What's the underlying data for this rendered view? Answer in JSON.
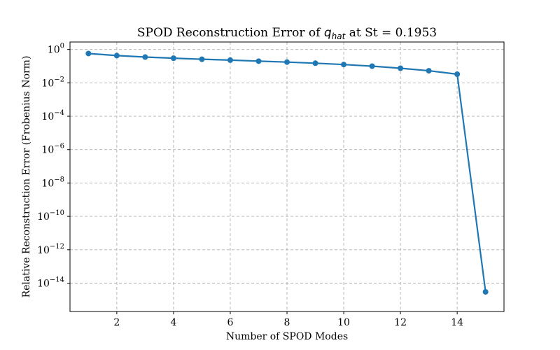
{
  "chart_data": {
    "type": "line",
    "title": "SPOD Reconstruction Error of",
    "title_symbol": "q",
    "title_subscript": "hat",
    "title_suffix": " at St = 0.1953",
    "xlabel": "Number of SPOD Modes",
    "ylabel": "Relative Reconstruction Error (Frobenius Norm)",
    "yscale": "log",
    "xlim": [
      0.35,
      15.65
    ],
    "ylim": [
      2e-16,
      2.8
    ],
    "grid": true,
    "line_color": "#1f77b4",
    "x_ticks": [
      2,
      4,
      6,
      8,
      10,
      12,
      14
    ],
    "y_tick_exponents": [
      0,
      -2,
      -4,
      -6,
      -8,
      -10,
      -12,
      -14
    ],
    "series": [
      {
        "x": [
          1,
          2,
          3,
          4,
          5,
          6,
          7,
          8,
          9,
          10,
          11,
          12,
          13,
          14,
          15
        ],
        "y": [
          0.57,
          0.43,
          0.35,
          0.3,
          0.26,
          0.23,
          0.2,
          0.175,
          0.15,
          0.125,
          0.1,
          0.075,
          0.053,
          0.033,
          3e-15
        ]
      }
    ]
  }
}
